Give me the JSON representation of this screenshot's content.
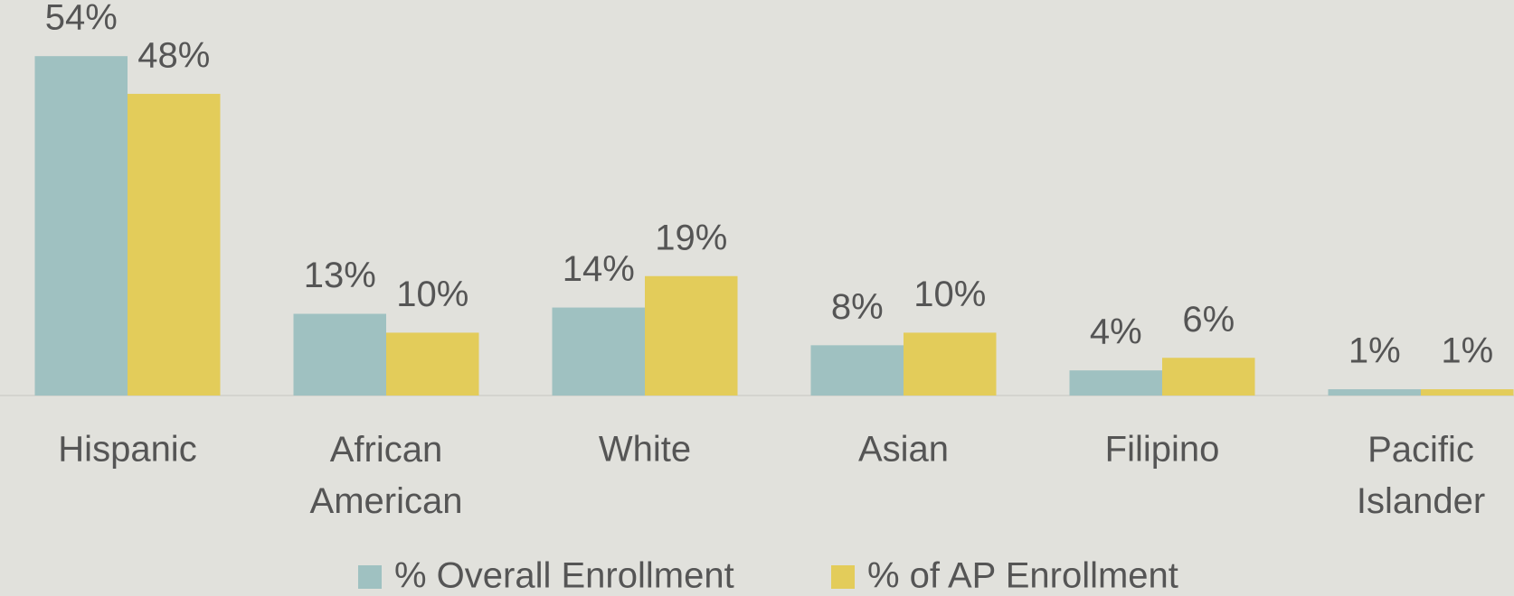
{
  "chart_data": {
    "type": "bar",
    "categories": [
      "Hispanic",
      "African American",
      "White",
      "Asian",
      "Filipino",
      "Pacific Islander"
    ],
    "series": [
      {
        "name": "% Overall Enrollment",
        "color": "#9fc1c1",
        "values": [
          54,
          13,
          14,
          8,
          4,
          1
        ],
        "value_labels": [
          "54%",
          "13%",
          "14%",
          "8%",
          "4%",
          "1%"
        ]
      },
      {
        "name": "% of AP Enrollment",
        "color": "#e3cc5a",
        "values": [
          48,
          10,
          19,
          10,
          6,
          1
        ],
        "value_labels": [
          "48%",
          "10%",
          "19%",
          "10%",
          "6%",
          "1%"
        ]
      }
    ],
    "legend": "bottom"
  }
}
